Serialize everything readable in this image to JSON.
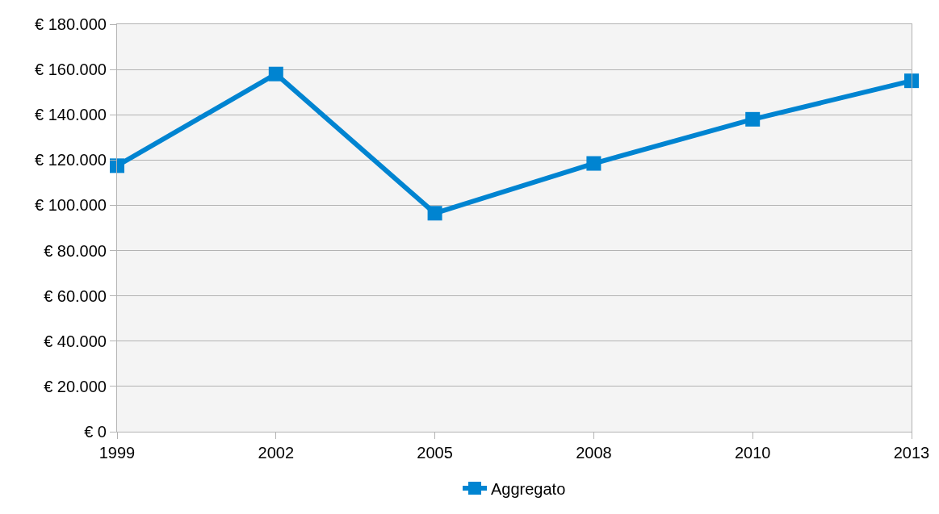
{
  "chart_data": {
    "type": "line",
    "categories": [
      "1999",
      "2002",
      "2005",
      "2008",
      "2010",
      "2013"
    ],
    "series": [
      {
        "name": "Aggregato",
        "color": "#0084d1",
        "values": [
          117500,
          158000,
          96500,
          118500,
          138000,
          155000
        ]
      }
    ],
    "ylim": [
      0,
      180000
    ],
    "yticks": [
      {
        "value": 0,
        "label": "€ 0"
      },
      {
        "value": 20000,
        "label": "€ 20.000"
      },
      {
        "value": 40000,
        "label": "€ 40.000"
      },
      {
        "value": 60000,
        "label": "€ 60.000"
      },
      {
        "value": 80000,
        "label": "€ 80.000"
      },
      {
        "value": 100000,
        "label": "€ 100.000"
      },
      {
        "value": 120000,
        "label": "€ 120.000"
      },
      {
        "value": 140000,
        "label": "€ 140.000"
      },
      {
        "value": 160000,
        "label": "€ 160.000"
      },
      {
        "value": 180000,
        "label": "€ 180.000"
      }
    ],
    "grid": "y",
    "legend": "bottom",
    "marker": "square",
    "line_style": "solid"
  }
}
